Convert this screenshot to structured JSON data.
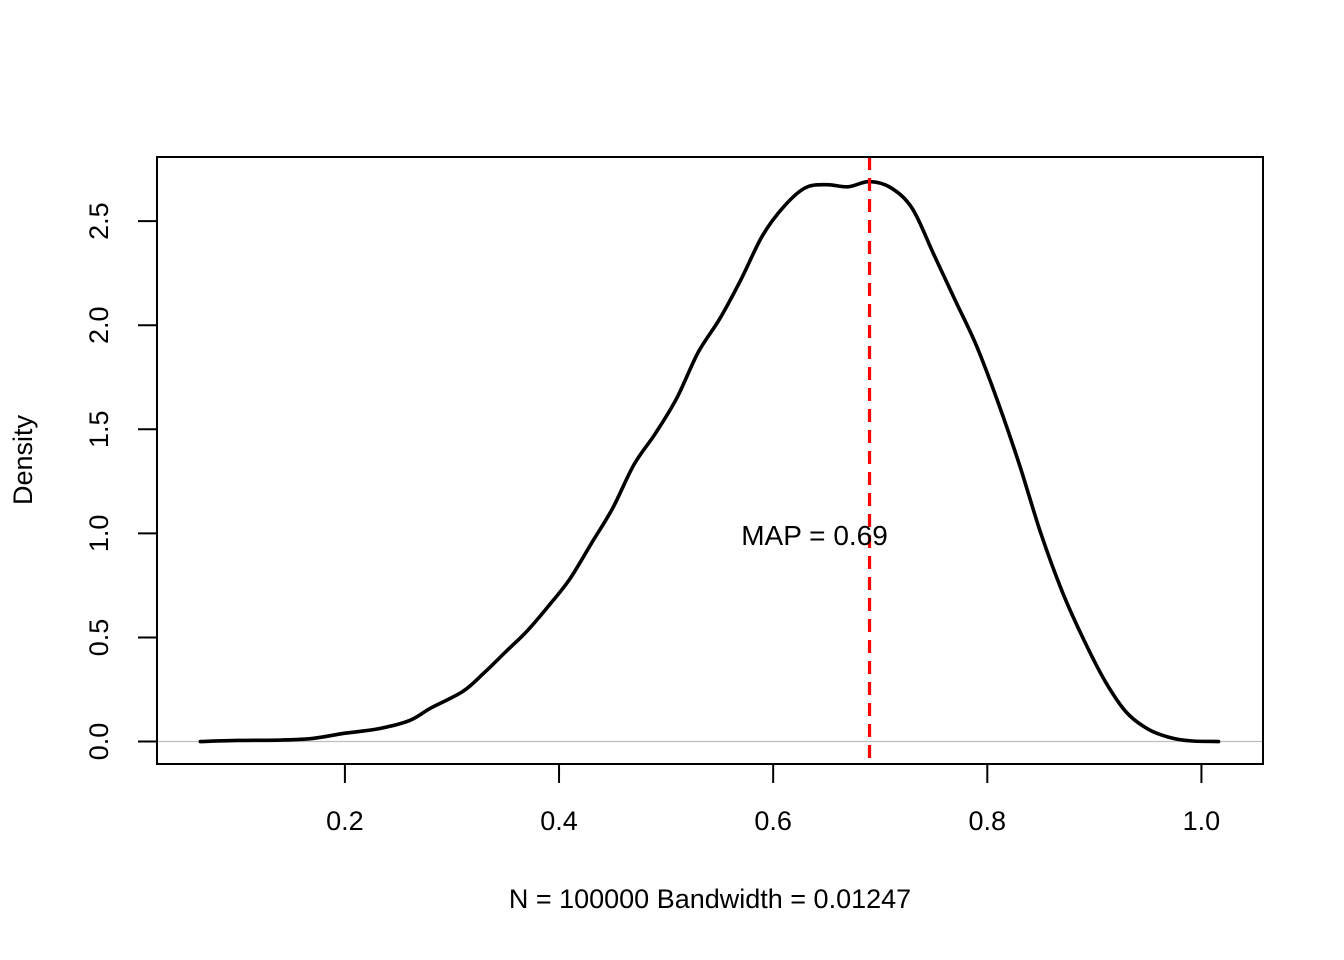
{
  "chart_data": {
    "type": "line",
    "title": "",
    "xlabel": "N = 100000   Bandwidth = 0.01247",
    "ylabel": "Density",
    "xlim": [
      0.0245,
      1.0575
    ],
    "ylim": [
      -0.108,
      2.808
    ],
    "x_ticks": [
      0.2,
      0.4,
      0.6,
      0.8,
      1.0
    ],
    "x_tick_labels": [
      "0.2",
      "0.4",
      "0.6",
      "0.8",
      "1.0"
    ],
    "y_ticks": [
      0.0,
      0.5,
      1.0,
      1.5,
      2.0,
      2.5
    ],
    "y_tick_labels": [
      "0.0",
      "0.5",
      "1.0",
      "1.5",
      "2.0",
      "2.5"
    ],
    "grid": false,
    "legend": "none",
    "baseline": {
      "y": 0,
      "color": "#bebebe"
    },
    "series": [
      {
        "color": "#000000",
        "x": [
          0.065,
          0.1,
          0.14,
          0.17,
          0.2,
          0.23,
          0.26,
          0.28,
          0.31,
          0.33,
          0.35,
          0.37,
          0.39,
          0.41,
          0.43,
          0.45,
          0.47,
          0.49,
          0.51,
          0.53,
          0.55,
          0.57,
          0.59,
          0.61,
          0.63,
          0.65,
          0.67,
          0.69,
          0.71,
          0.73,
          0.75,
          0.77,
          0.79,
          0.81,
          0.83,
          0.85,
          0.87,
          0.89,
          0.91,
          0.93,
          0.95,
          0.97,
          0.99,
          1.016
        ],
        "y": [
          0.0,
          0.005,
          0.007,
          0.015,
          0.04,
          0.06,
          0.1,
          0.16,
          0.24,
          0.33,
          0.43,
          0.53,
          0.65,
          0.78,
          0.95,
          1.12,
          1.33,
          1.48,
          1.65,
          1.87,
          2.03,
          2.22,
          2.43,
          2.57,
          2.66,
          2.675,
          2.665,
          2.69,
          2.66,
          2.56,
          2.34,
          2.12,
          1.9,
          1.63,
          1.33,
          1.0,
          0.72,
          0.49,
          0.29,
          0.14,
          0.06,
          0.02,
          0.003,
          0.0
        ]
      }
    ],
    "annotations": [
      {
        "text": "MAP = 0.69",
        "x": 0.69,
        "y": 0.98
      }
    ],
    "reference_lines": [
      {
        "type": "vertical",
        "x": 0.69,
        "color": "#ff0000",
        "style": "dashed"
      }
    ]
  }
}
